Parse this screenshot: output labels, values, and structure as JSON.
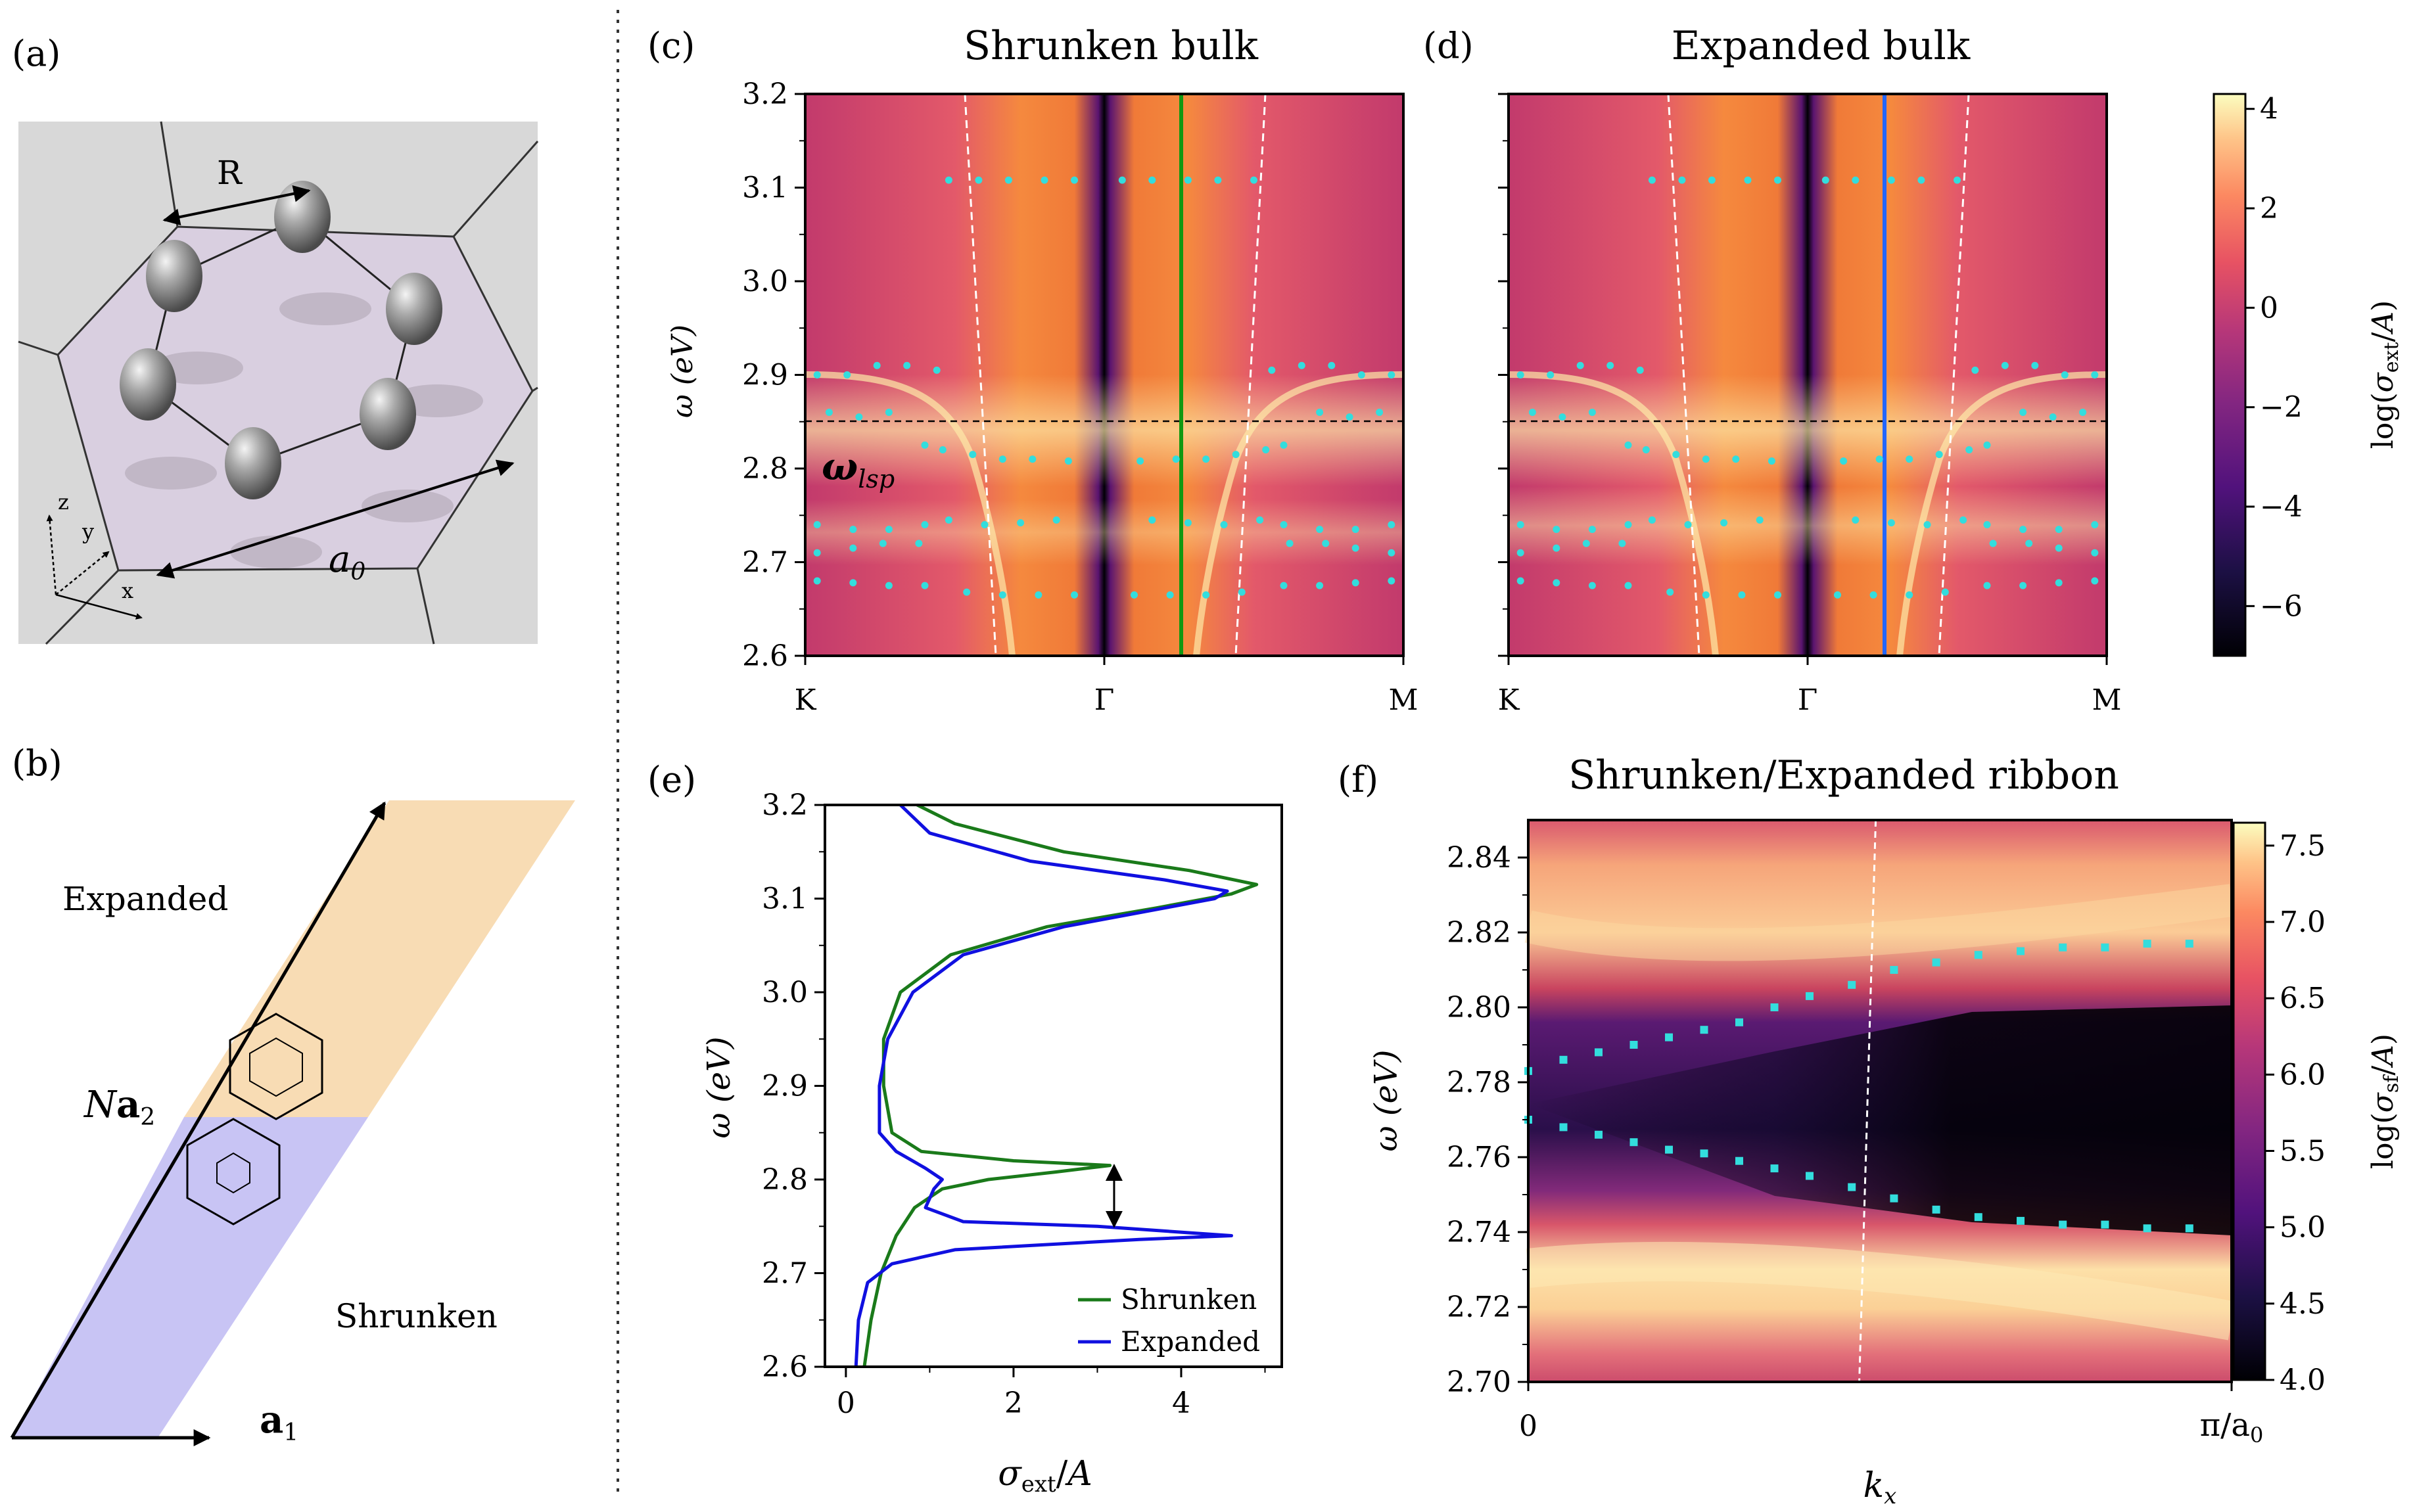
{
  "panels": {
    "a": "(a)",
    "b": "(b)",
    "c": "(c)",
    "d": "(d)",
    "e": "(e)",
    "f": "(f)"
  },
  "colors": {
    "shrunken": "#1a7a1a",
    "expanded": "#1010e0",
    "dots": "#33dddd",
    "vline_c": "#119911",
    "vline_d": "#2266ff",
    "orange_region": "#f8dcb4",
    "purple_region": "#c8c4f4"
  },
  "schematic_a": {
    "R_label": "R",
    "a0_label": "a",
    "a0_sub": "0",
    "axes": [
      "z",
      "y",
      "x"
    ]
  },
  "schematic_b": {
    "expanded_label": "Expanded",
    "shrunken_label": "Shrunken",
    "Na2_label": "N",
    "Na2_bold": "a",
    "Na2_sub": "2",
    "a1_bold": "a",
    "a1_sub": "1"
  },
  "chart_data": [
    {
      "id": "c",
      "type": "heatmap",
      "title": "Shrunken bulk",
      "ylabel": "ω (eV)",
      "ylim": [
        2.6,
        3.2
      ],
      "yticks": [
        "2.6",
        "2.7",
        "2.8",
        "2.9",
        "3.0",
        "3.1",
        "3.2"
      ],
      "xticks": [
        "K",
        "Γ",
        "M"
      ],
      "annotation": "ω",
      "annotation_sub": "lsp",
      "hline": 2.85,
      "vline_x": 0.26,
      "vline_color_name": "green"
    },
    {
      "id": "d",
      "type": "heatmap",
      "title": "Expanded bulk",
      "ylim": [
        2.6,
        3.2
      ],
      "xticks": [
        "K",
        "Γ",
        "M"
      ],
      "hline": 2.85,
      "vline_x": 0.26,
      "vline_color_name": "blue"
    },
    {
      "id": "cb1",
      "type": "colorbar",
      "label": "log(σ_ext/A)",
      "range": [
        -7,
        4.3
      ],
      "ticks": [
        "4",
        "2",
        "0",
        "−2",
        "−4",
        "−6"
      ],
      "tick_values": [
        4,
        2,
        0,
        -2,
        -4,
        -6
      ]
    },
    {
      "id": "e",
      "type": "line",
      "xlabel": "σ_ext/A",
      "ylabel": "ω (eV)",
      "xlim": [
        -0.25,
        5.2
      ],
      "ylim": [
        2.6,
        3.2
      ],
      "xticks": [
        "0",
        "2",
        "4"
      ],
      "xtick_values": [
        0,
        2,
        4
      ],
      "yticks": [
        "2.6",
        "2.7",
        "2.8",
        "2.9",
        "3.0",
        "3.1",
        "3.2"
      ],
      "series": [
        {
          "name": "Shrunken",
          "points": [
            [
              0.22,
              2.6
            ],
            [
              0.3,
              2.65
            ],
            [
              0.42,
              2.7
            ],
            [
              0.6,
              2.74
            ],
            [
              0.82,
              2.77
            ],
            [
              1.15,
              2.79
            ],
            [
              1.7,
              2.8
            ],
            [
              2.5,
              2.808
            ],
            [
              3.15,
              2.815
            ],
            [
              2.0,
              2.82
            ],
            [
              0.9,
              2.83
            ],
            [
              0.55,
              2.85
            ],
            [
              0.45,
              2.9
            ],
            [
              0.45,
              2.95
            ],
            [
              0.65,
              3.0
            ],
            [
              1.25,
              3.04
            ],
            [
              2.4,
              3.07
            ],
            [
              3.7,
              3.09
            ],
            [
              4.6,
              3.105
            ],
            [
              4.9,
              3.115
            ],
            [
              4.1,
              3.13
            ],
            [
              2.6,
              3.15
            ],
            [
              1.3,
              3.18
            ],
            [
              0.85,
              3.2
            ]
          ]
        },
        {
          "name": "Expanded",
          "points": [
            [
              0.12,
              2.6
            ],
            [
              0.15,
              2.65
            ],
            [
              0.26,
              2.69
            ],
            [
              0.55,
              2.71
            ],
            [
              1.3,
              2.725
            ],
            [
              3.5,
              2.736
            ],
            [
              4.6,
              2.74
            ],
            [
              3.0,
              2.75
            ],
            [
              1.4,
              2.755
            ],
            [
              0.95,
              2.77
            ],
            [
              1.05,
              2.79
            ],
            [
              1.15,
              2.8
            ],
            [
              0.95,
              2.812
            ],
            [
              0.6,
              2.83
            ],
            [
              0.4,
              2.85
            ],
            [
              0.4,
              2.9
            ],
            [
              0.5,
              2.95
            ],
            [
              0.8,
              3.0
            ],
            [
              1.4,
              3.04
            ],
            [
              2.6,
              3.07
            ],
            [
              3.8,
              3.09
            ],
            [
              4.4,
              3.1
            ],
            [
              4.55,
              3.108
            ],
            [
              3.8,
              3.12
            ],
            [
              2.2,
              3.14
            ],
            [
              1.0,
              3.17
            ],
            [
              0.65,
              3.2
            ]
          ]
        }
      ],
      "arrow_y": [
        2.75,
        2.815
      ],
      "arrow_x": 3.2
    },
    {
      "id": "f",
      "type": "heatmap",
      "title": "Shrunken/Expanded ribbon",
      "xlabel": "k",
      "xlabel_sub": "x",
      "ylabel": "ω (eV)",
      "ylim": [
        2.7,
        2.85
      ],
      "yticks": [
        "2.70",
        "2.72",
        "2.74",
        "2.76",
        "2.78",
        "2.80",
        "2.82",
        "2.84"
      ],
      "ytick_values": [
        2.7,
        2.72,
        2.74,
        2.76,
        2.78,
        2.8,
        2.82,
        2.84
      ],
      "xticks": [
        "0",
        "π/a"
      ],
      "xtick_sub": "0",
      "vline_kx": 0.48
    },
    {
      "id": "cb2",
      "type": "colorbar",
      "label": "log(σ_sf/A)",
      "range": [
        4.0,
        7.65
      ],
      "ticks": [
        "7.5",
        "7.0",
        "6.5",
        "6.0",
        "5.5",
        "5.0",
        "4.5",
        "4.0"
      ],
      "tick_values": [
        7.5,
        7.0,
        6.5,
        6.0,
        5.5,
        5.0,
        4.5,
        4.0
      ]
    }
  ]
}
